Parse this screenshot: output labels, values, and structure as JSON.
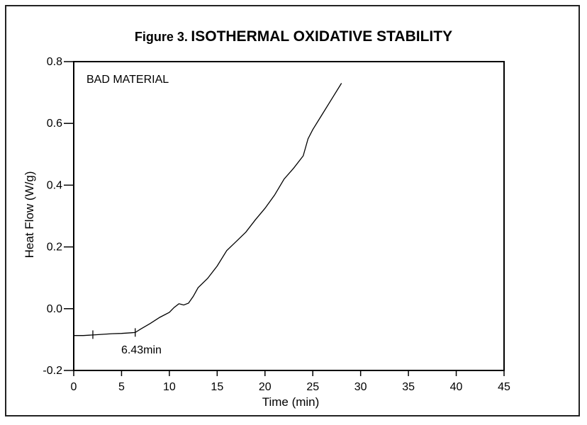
{
  "figure": {
    "label": "Figure 3.",
    "title": "ISOTHERMAL OXIDATIVE STABILITY"
  },
  "chart_data": {
    "type": "line",
    "title": "ISOTHERMAL OXIDATIVE STABILITY",
    "xlabel": "Time (min)",
    "ylabel": "Heat Flow (W/g)",
    "xlim": [
      0,
      45
    ],
    "ylim": [
      -0.2,
      0.8
    ],
    "x_ticks": [
      0,
      5,
      10,
      15,
      20,
      25,
      30,
      35,
      40,
      45
    ],
    "x_tick_labels": [
      "0",
      "5",
      "10",
      "15",
      "20",
      "25",
      "30",
      "35",
      "40",
      "45"
    ],
    "y_ticks": [
      -0.2,
      0.0,
      0.2,
      0.4,
      0.6,
      0.8
    ],
    "y_tick_labels": [
      "-0.2",
      "0.0",
      "0.2",
      "0.4",
      "0.6",
      "0.8"
    ],
    "grid": false,
    "annotations": {
      "sample_label": "BAD MATERIAL",
      "onset_label": "6.43min",
      "onset_x": 6.43,
      "onset_y": -0.077,
      "baseline_marker_x": 2.0,
      "baseline_marker_y": -0.084
    },
    "series": [
      {
        "x": [
          0.0,
          1.0,
          2.0,
          3.0,
          4.0,
          5.0,
          6.0,
          6.43,
          7.0,
          8.0,
          9.0,
          10.0,
          10.5,
          11.0,
          11.5,
          12.0,
          12.5,
          13.0,
          14.0,
          15.0,
          16.0,
          17.0,
          18.0,
          19.0,
          20.0,
          21.0,
          22.0,
          23.0,
          24.0,
          24.5,
          25.0,
          26.0,
          27.0,
          28.0
        ],
        "y": [
          -0.087,
          -0.087,
          -0.085,
          -0.083,
          -0.081,
          -0.08,
          -0.078,
          -0.077,
          -0.066,
          -0.048,
          -0.028,
          -0.012,
          0.004,
          0.016,
          0.012,
          0.018,
          0.04,
          0.068,
          0.098,
          0.138,
          0.188,
          0.218,
          0.248,
          0.288,
          0.325,
          0.368,
          0.42,
          0.455,
          0.495,
          0.55,
          0.58,
          0.63,
          0.68,
          0.73
        ]
      }
    ]
  }
}
